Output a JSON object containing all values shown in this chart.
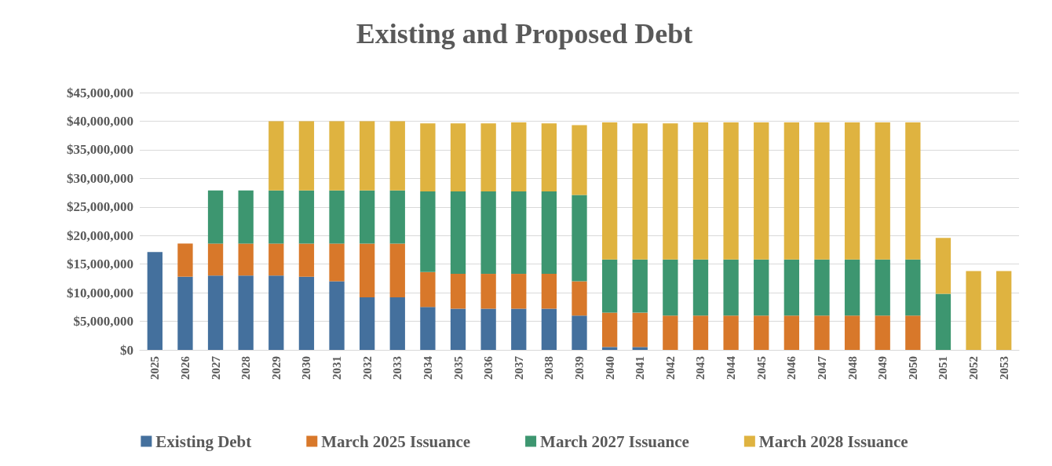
{
  "chart_data": {
    "type": "bar",
    "title": "Existing and Proposed Debt",
    "stacked": true,
    "grid": "y",
    "legend": "bottom",
    "categories": [
      "2025",
      "2026",
      "2027",
      "2028",
      "2029",
      "2030",
      "2031",
      "2032",
      "2033",
      "2034",
      "2035",
      "2036",
      "2037",
      "2038",
      "2039",
      "2040",
      "2041",
      "2042",
      "2043",
      "2044",
      "2045",
      "2046",
      "2047",
      "2048",
      "2049",
      "2050",
      "2051",
      "2052",
      "2053"
    ],
    "ylim": [
      0,
      45000000
    ],
    "yticks": [
      {
        "value": 0,
        "label": "$0"
      },
      {
        "value": 5000000,
        "label": "$5,000,000"
      },
      {
        "value": 10000000,
        "label": "$10,000,000"
      },
      {
        "value": 15000000,
        "label": "$15,000,000"
      },
      {
        "value": 20000000,
        "label": "$20,000,000"
      },
      {
        "value": 25000000,
        "label": "$25,000,000"
      },
      {
        "value": 30000000,
        "label": "$30,000,000"
      },
      {
        "value": 35000000,
        "label": "$35,000,000"
      },
      {
        "value": 40000000,
        "label": "$40,000,000"
      },
      {
        "value": 45000000,
        "label": "$45,000,000"
      }
    ],
    "series": [
      {
        "name": "Existing Debt",
        "color": "#44709d",
        "values": [
          17100000,
          12800000,
          13000000,
          13000000,
          13000000,
          12800000,
          12000000,
          9200000,
          9200000,
          7500000,
          7200000,
          7200000,
          7200000,
          7200000,
          6000000,
          500000,
          500000,
          null,
          null,
          null,
          null,
          null,
          null,
          null,
          null,
          null,
          null,
          null,
          null
        ]
      },
      {
        "name": "March 2025 Issuance",
        "color": "#d8782a",
        "values": [
          null,
          5800000,
          5600000,
          5600000,
          5600000,
          5800000,
          6600000,
          9400000,
          9400000,
          6100000,
          6100000,
          6100000,
          6100000,
          6100000,
          6000000,
          6000000,
          6000000,
          6000000,
          6000000,
          6000000,
          6000000,
          6000000,
          6000000,
          6000000,
          6000000,
          6000000,
          null,
          null,
          null
        ]
      },
      {
        "name": "March 2027 Issuance",
        "color": "#3d9670",
        "values": [
          null,
          null,
          9300000,
          9300000,
          9300000,
          9300000,
          9300000,
          9300000,
          9300000,
          14100000,
          14400000,
          14400000,
          14400000,
          14400000,
          15100000,
          9300000,
          9300000,
          9800000,
          9800000,
          9800000,
          9800000,
          9800000,
          9800000,
          9800000,
          9800000,
          9800000,
          9800000,
          null,
          null
        ]
      },
      {
        "name": "March 2028 Issuance",
        "color": "#dfb340",
        "values": [
          null,
          null,
          null,
          null,
          12100000,
          12100000,
          12100000,
          12100000,
          12100000,
          11900000,
          11900000,
          11900000,
          12100000,
          11900000,
          12200000,
          24000000,
          23800000,
          23800000,
          24000000,
          24000000,
          24000000,
          24000000,
          24000000,
          24000000,
          24000000,
          24000000,
          9800000,
          13800000,
          13800000
        ]
      }
    ]
  }
}
